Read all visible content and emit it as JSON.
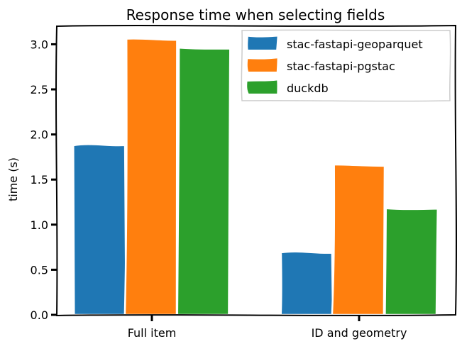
{
  "chart_data": {
    "type": "bar",
    "title": "Response time when selecting fields",
    "xlabel": "",
    "ylabel": "time (s)",
    "categories": [
      "Full item",
      "ID and geometry"
    ],
    "series": [
      {
        "name": "stac-fastapi-geoparquet",
        "color": "#1f77b4",
        "values": [
          1.89,
          0.7
        ]
      },
      {
        "name": "stac-fastapi-pgstac",
        "color": "#ff7f0e",
        "values": [
          3.06,
          1.66
        ]
      },
      {
        "name": "duckdb",
        "color": "#2ca02c",
        "values": [
          2.95,
          1.17
        ]
      }
    ],
    "ylim": [
      0,
      3.2
    ],
    "yticks": [
      "0.0",
      "0.5",
      "1.0",
      "1.5",
      "2.0",
      "2.5",
      "3.0"
    ],
    "grid": false,
    "legend_position": "top-right"
  }
}
